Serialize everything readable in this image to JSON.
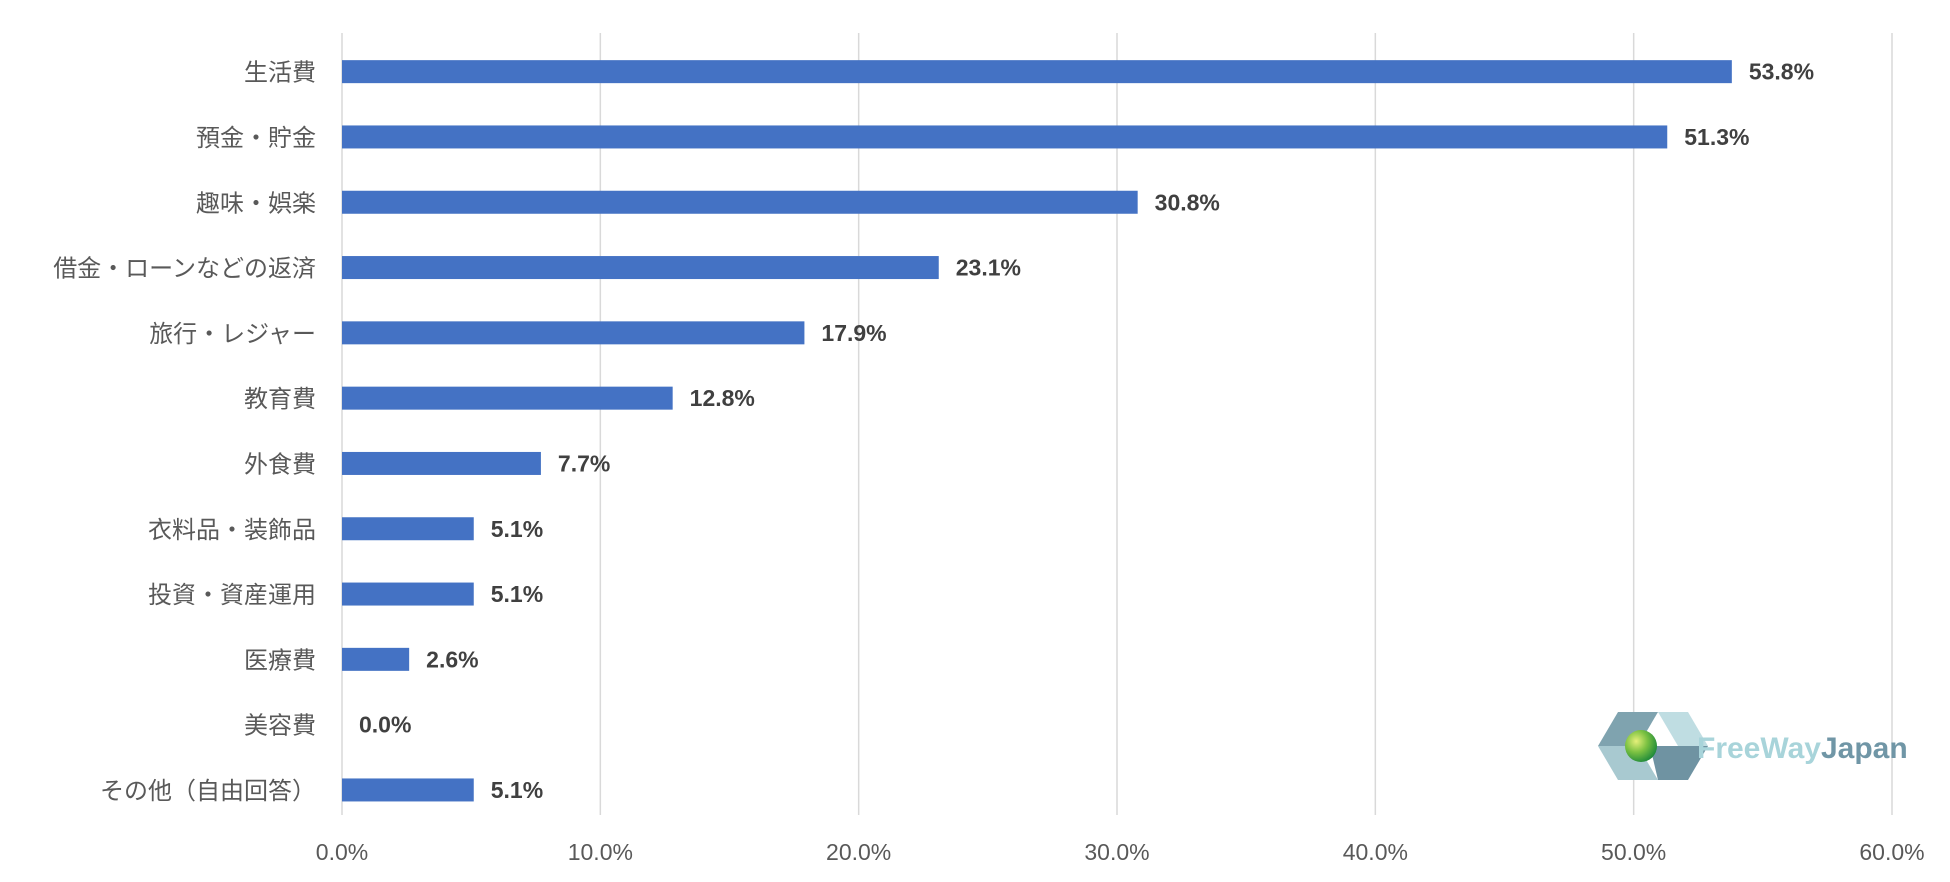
{
  "chart_data": {
    "type": "bar",
    "orientation": "horizontal",
    "categories": [
      "生活費",
      "預金・貯金",
      "趣味・娯楽",
      "借金・ローンなどの返済",
      "旅行・レジャー",
      "教育費",
      "外食費",
      "衣料品・装飾品",
      "投資・資産運用",
      "医療費",
      "美容費",
      "その他（自由回答）"
    ],
    "values": [
      53.8,
      51.3,
      30.8,
      23.1,
      17.9,
      12.8,
      7.7,
      5.1,
      5.1,
      2.6,
      0.0,
      5.1
    ],
    "value_labels": [
      "53.8%",
      "51.3%",
      "30.8%",
      "23.1%",
      "17.9%",
      "12.8%",
      "7.7%",
      "5.1%",
      "5.1%",
      "2.6%",
      "0.0%",
      "5.1%"
    ],
    "xlim": [
      0,
      60
    ],
    "x_ticks": [
      0,
      10,
      20,
      30,
      40,
      50,
      60
    ],
    "x_tick_labels": [
      "0.0%",
      "10.0%",
      "20.0%",
      "30.0%",
      "40.0%",
      "50.0%",
      "60.0%"
    ],
    "grid": "vertical",
    "bar_color": "#4472C4",
    "grid_color": "#D9D9D9"
  },
  "logo": {
    "text_part1": "FreeWay",
    "text_part2": "Japan",
    "color_part1": "#A8D4DA",
    "color_part2": "#7096A6"
  }
}
